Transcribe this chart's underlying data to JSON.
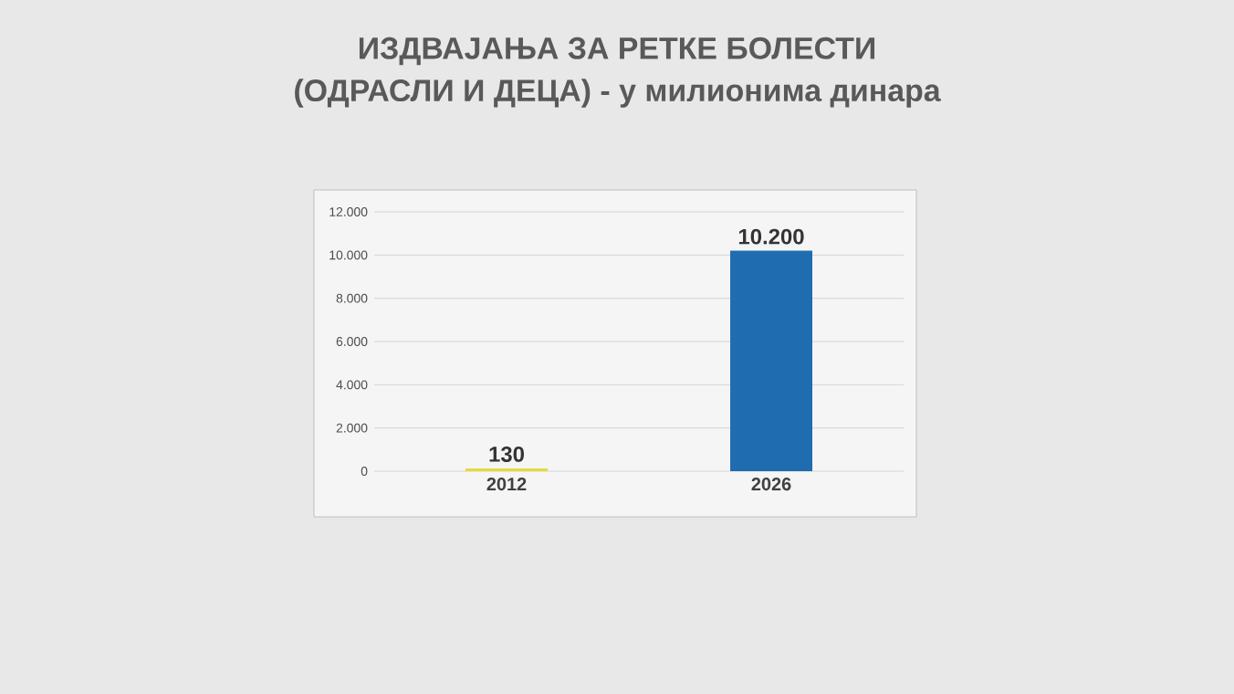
{
  "chart_data": {
    "type": "bar",
    "title": "ИЗДВАЈАЊА ЗА РЕТКЕ БОЛЕСТИ",
    "subtitle": "(ОДРАСЛИ И ДЕЦА) - у милионима динара",
    "categories": [
      "2012",
      "2026"
    ],
    "values": [
      130,
      10200
    ],
    "colors": [
      "#e3dc3a",
      "#1f6db0"
    ],
    "value_labels": [
      "130",
      "10.200"
    ],
    "ylim": [
      0,
      12000
    ],
    "yticks": [
      0,
      {
        "value": 2000,
        "label": "2.000"
      },
      {
        "value": 4000,
        "label": "4.000"
      },
      {
        "value": 6000,
        "label": "6.000"
      },
      {
        "value": 8000,
        "label": "8.000"
      },
      {
        "value": 10000,
        "label": "10.000"
      },
      {
        "value": 12000,
        "label": "12.000"
      }
    ],
    "grid": "y"
  }
}
